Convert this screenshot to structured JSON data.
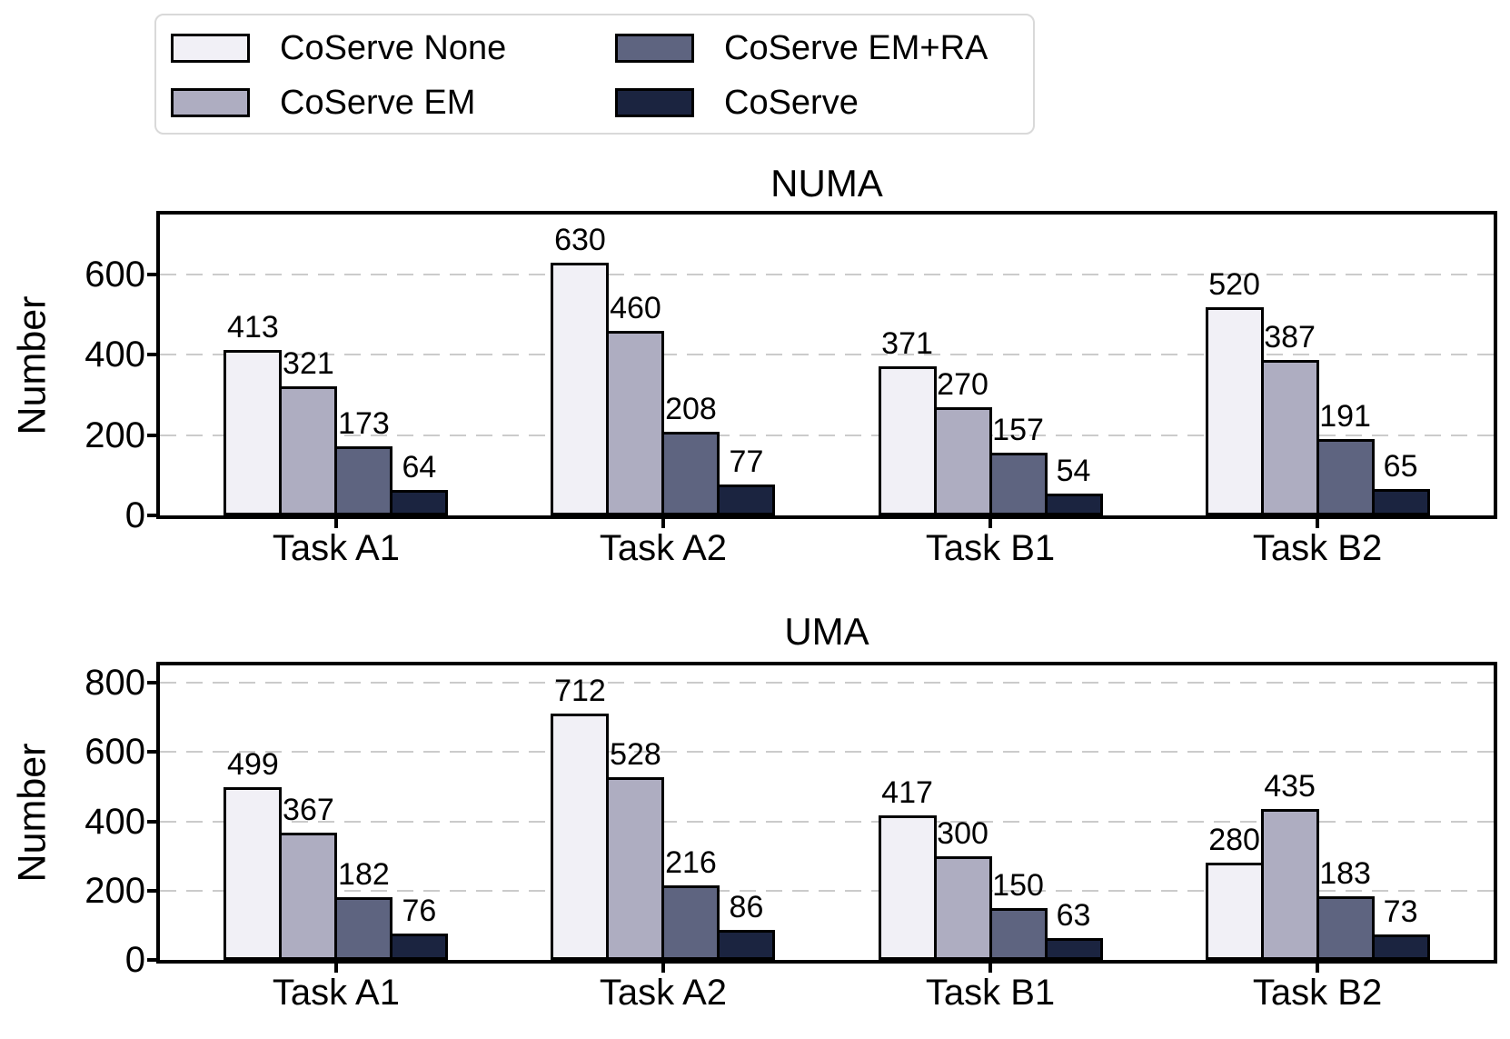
{
  "figure": {
    "background": "#ffffff",
    "text_color": "#000000",
    "grid_color": "#cbcbcb",
    "bar_edge_color": "#000000"
  },
  "legend": {
    "position": "upper left",
    "border_color": "#d9d9d9",
    "items": [
      {
        "label": "CoServe None",
        "color": "#f1f0f6"
      },
      {
        "label": "CoServe EM+RA",
        "color": "#5e6480"
      },
      {
        "label": "CoServe EM",
        "color": "#aeadc1"
      },
      {
        "label": "CoServe",
        "color": "#1b2440"
      }
    ]
  },
  "chart_data": [
    {
      "type": "bar",
      "title": "NUMA",
      "xlabel": "",
      "ylabel": "Number",
      "categories": [
        "Task A1",
        "Task A2",
        "Task B1",
        "Task B2"
      ],
      "yticks": [
        0,
        200,
        400,
        600
      ],
      "ylim": [
        0,
        750
      ],
      "grid": "dashed horizontal",
      "series": [
        {
          "name": "CoServe None",
          "color": "#f1f0f6",
          "values": [
            413,
            630,
            371,
            520
          ]
        },
        {
          "name": "CoServe EM",
          "color": "#aeadc1",
          "values": [
            321,
            460,
            270,
            387
          ]
        },
        {
          "name": "CoServe EM+RA",
          "color": "#5e6480",
          "values": [
            173,
            208,
            157,
            191
          ]
        },
        {
          "name": "CoServe",
          "color": "#1b2440",
          "values": [
            64,
            77,
            54,
            65
          ]
        }
      ]
    },
    {
      "type": "bar",
      "title": "UMA",
      "xlabel": "",
      "ylabel": "Number",
      "categories": [
        "Task A1",
        "Task A2",
        "Task B1",
        "Task B2"
      ],
      "yticks": [
        0,
        200,
        400,
        600,
        800
      ],
      "ylim": [
        0,
        850
      ],
      "grid": "dashed horizontal",
      "series": [
        {
          "name": "CoServe None",
          "color": "#f1f0f6",
          "values": [
            499,
            712,
            417,
            280
          ]
        },
        {
          "name": "CoServe EM",
          "color": "#aeadc1",
          "values": [
            367,
            528,
            300,
            435
          ]
        },
        {
          "name": "CoServe EM+RA",
          "color": "#5e6480",
          "values": [
            182,
            216,
            150,
            183
          ]
        },
        {
          "name": "CoServe",
          "color": "#1b2440",
          "values": [
            76,
            86,
            63,
            73
          ]
        }
      ]
    }
  ]
}
